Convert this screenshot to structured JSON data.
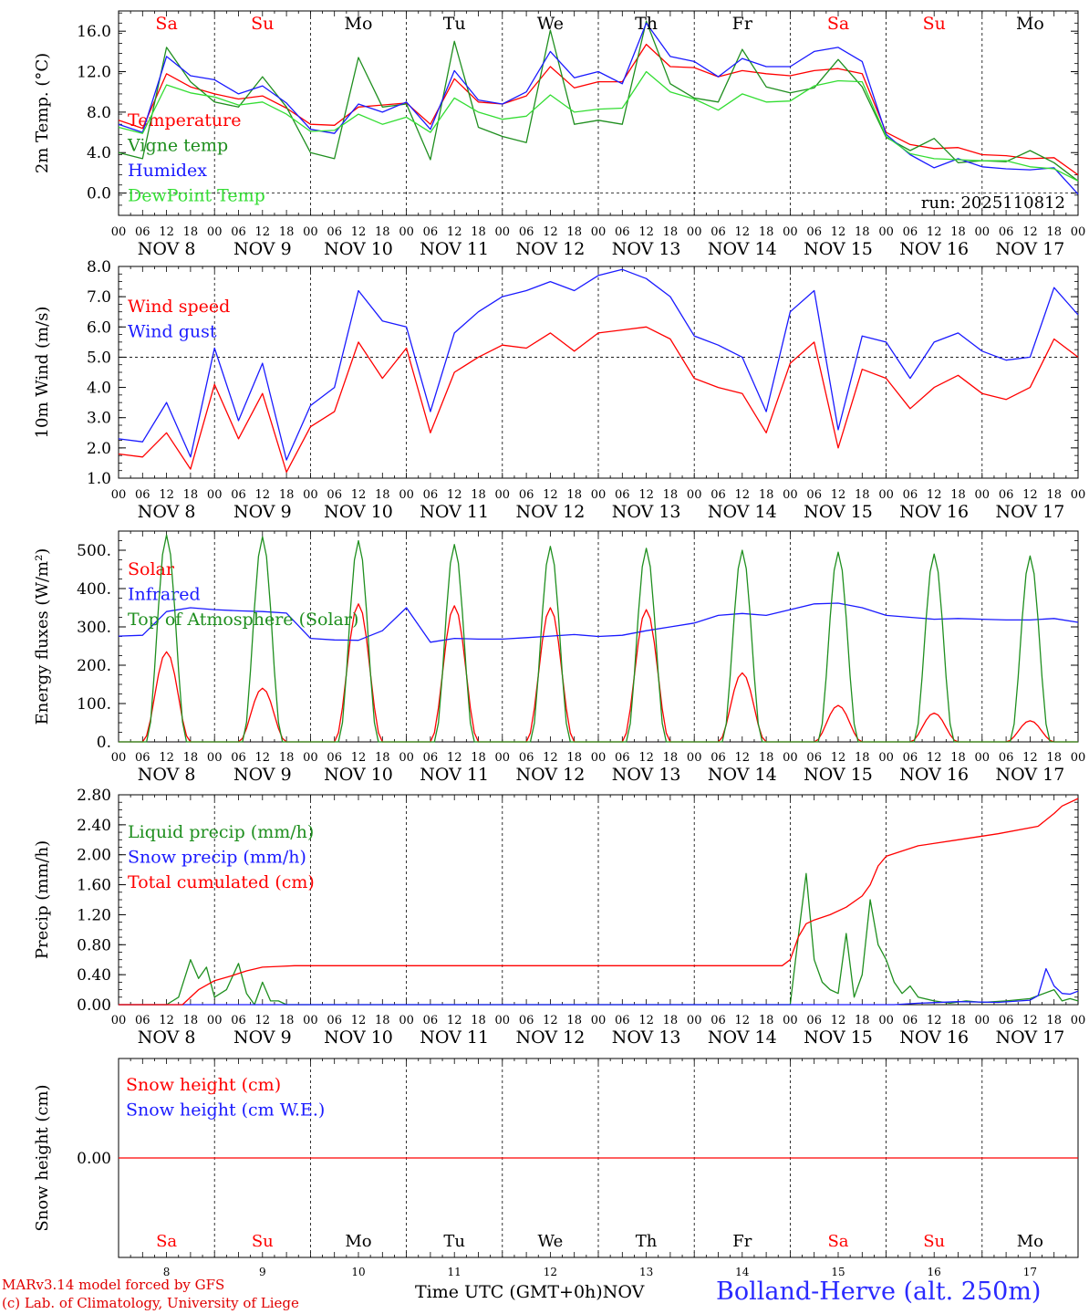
{
  "footer": {
    "credit_line1": "MARv3.14 model forced by GFS",
    "credit_line2": "(c) Lab. of Climatology, University of Liege",
    "axis_caption": "Time UTC (GMT+0h)",
    "month": "NOV",
    "station": "Bolland-Herve (alt. 250m)"
  },
  "colors": {
    "red": "#ff0000",
    "green": "#1f8f1f",
    "lightgreen": "#33dd33",
    "blue": "#1a1aff",
    "black": "#000000"
  },
  "time_axis": {
    "hours_per_day": [
      0,
      6,
      12,
      18
    ],
    "day_labels": [
      "NOV  8",
      "NOV  9",
      "NOV 10",
      "NOV 11",
      "NOV 12",
      "NOV 13",
      "NOV 14",
      "NOV 15",
      "NOV 16",
      "NOV 17"
    ],
    "weekdays": [
      "Sa",
      "Su",
      "Mo",
      "Tu",
      "We",
      "Th",
      "Fr",
      "Sa",
      "Su",
      "Mo"
    ],
    "weekday_colors": [
      "red",
      "red",
      "black",
      "black",
      "black",
      "black",
      "black",
      "red",
      "red",
      "black"
    ],
    "day_numbers": [
      "8",
      "9",
      "10",
      "11",
      "12",
      "13",
      "14",
      "15",
      "16",
      "17"
    ]
  },
  "chart_data": [
    {
      "type": "line",
      "ylabel": "2m Temp. (°C)",
      "ylim": [
        -2.2,
        18.0
      ],
      "yticks": [
        0.0,
        4.0,
        8.0,
        12.0,
        16.0
      ],
      "ytick_labels": [
        "0.0",
        "4.0",
        "8.0",
        "12.0",
        "16.0"
      ],
      "ref_line": 0.0,
      "annotation": "run: 2025110812",
      "series": [
        {
          "name": "Temperature",
          "color": "red",
          "x": [
            0,
            6,
            12,
            18,
            24,
            30,
            36,
            42,
            48,
            54,
            60,
            66,
            72,
            78,
            84,
            90,
            96,
            102,
            108,
            114,
            120,
            126,
            132,
            138,
            144,
            150,
            156,
            162,
            168,
            174,
            180,
            186,
            192,
            198,
            204,
            210,
            216,
            222,
            228,
            234,
            240
          ],
          "values": [
            7.2,
            6.4,
            11.8,
            10.5,
            9.8,
            9.3,
            9.6,
            8.4,
            6.8,
            6.7,
            8.5,
            8.7,
            8.9,
            6.8,
            11.3,
            9.0,
            8.8,
            9.6,
            12.5,
            10.4,
            11.0,
            11.0,
            14.7,
            12.5,
            12.4,
            11.5,
            12.1,
            11.8,
            11.6,
            12.1,
            12.3,
            11.8,
            6.0,
            4.8,
            4.4,
            4.5,
            3.8,
            3.7,
            3.4,
            3.5,
            1.8
          ]
        },
        {
          "name": "Vigne temp",
          "color": "green",
          "x": [
            0,
            6,
            12,
            18,
            24,
            30,
            36,
            42,
            48,
            54,
            60,
            66,
            72,
            78,
            84,
            90,
            96,
            102,
            108,
            114,
            120,
            126,
            132,
            138,
            144,
            150,
            156,
            162,
            168,
            174,
            180,
            186,
            192,
            198,
            204,
            210,
            216,
            222,
            228,
            234,
            240
          ],
          "values": [
            4.0,
            3.4,
            14.4,
            11.0,
            9.0,
            8.5,
            11.5,
            8.5,
            4.0,
            3.4,
            13.4,
            8.5,
            8.8,
            3.3,
            15.0,
            6.5,
            5.6,
            5.0,
            16.1,
            6.8,
            7.2,
            6.8,
            17.0,
            10.8,
            9.4,
            9.0,
            14.2,
            10.5,
            9.9,
            10.4,
            13.2,
            10.5,
            5.5,
            4.2,
            5.4,
            3.0,
            3.2,
            3.1,
            4.2,
            3.0,
            1.2
          ]
        },
        {
          "name": "Humidex",
          "color": "blue",
          "x": [
            0,
            6,
            12,
            18,
            24,
            30,
            36,
            42,
            48,
            54,
            60,
            66,
            72,
            78,
            84,
            90,
            96,
            102,
            108,
            114,
            120,
            126,
            132,
            138,
            144,
            150,
            156,
            162,
            168,
            174,
            180,
            186,
            192,
            198,
            204,
            210,
            216,
            222,
            228,
            234,
            240
          ],
          "values": [
            6.8,
            6.0,
            13.5,
            11.6,
            11.2,
            9.8,
            10.6,
            8.9,
            6.3,
            5.9,
            8.8,
            8.0,
            9.0,
            6.3,
            12.1,
            9.2,
            8.8,
            10.0,
            14.0,
            11.4,
            12.0,
            10.8,
            16.8,
            13.5,
            13.0,
            11.5,
            13.3,
            12.5,
            12.5,
            14.0,
            14.4,
            13.0,
            5.8,
            3.8,
            2.5,
            3.4,
            2.6,
            2.4,
            2.3,
            2.5,
            -0.1
          ]
        },
        {
          "name": "DewPoint Temp",
          "color": "lightgreen",
          "x": [
            0,
            6,
            12,
            18,
            24,
            30,
            36,
            42,
            48,
            54,
            60,
            66,
            72,
            78,
            84,
            90,
            96,
            102,
            108,
            114,
            120,
            126,
            132,
            138,
            144,
            150,
            156,
            162,
            168,
            174,
            180,
            186,
            192,
            198,
            204,
            210,
            216,
            222,
            228,
            234,
            240
          ],
          "values": [
            6.5,
            5.9,
            10.7,
            9.9,
            9.5,
            8.7,
            9.0,
            7.8,
            6.1,
            6.2,
            7.8,
            6.8,
            7.5,
            6.0,
            9.4,
            8.0,
            7.3,
            7.6,
            9.7,
            8.0,
            8.3,
            8.4,
            12.0,
            10.0,
            9.3,
            8.2,
            9.8,
            9.0,
            9.1,
            10.6,
            11.1,
            11.0,
            5.6,
            3.9,
            3.4,
            3.3,
            3.2,
            3.2,
            2.6,
            2.4,
            1.2
          ]
        }
      ]
    },
    {
      "type": "line",
      "ylabel": "10m Wind (m/s)",
      "ylim": [
        1.0,
        8.0
      ],
      "yticks": [
        1.0,
        2.0,
        3.0,
        4.0,
        5.0,
        6.0,
        7.0,
        8.0
      ],
      "ytick_labels": [
        "1.0",
        "2.0",
        "3.0",
        "4.0",
        "5.0",
        "6.0",
        "7.0",
        "8.0"
      ],
      "ref_line": 5.0,
      "series": [
        {
          "name": "Wind speed",
          "color": "red",
          "x": [
            0,
            6,
            12,
            18,
            24,
            30,
            36,
            42,
            48,
            54,
            60,
            66,
            72,
            78,
            84,
            90,
            96,
            102,
            108,
            114,
            120,
            126,
            132,
            138,
            144,
            150,
            156,
            162,
            168,
            174,
            180,
            186,
            192,
            198,
            204,
            210,
            216,
            222,
            228,
            234,
            240
          ],
          "values": [
            1.8,
            1.7,
            2.5,
            1.3,
            4.1,
            2.3,
            3.8,
            1.2,
            2.7,
            3.2,
            5.5,
            4.3,
            5.3,
            2.5,
            4.5,
            5.0,
            5.4,
            5.3,
            5.8,
            5.2,
            5.8,
            5.9,
            6.0,
            5.6,
            4.3,
            4.0,
            3.8,
            2.5,
            4.8,
            5.5,
            2.0,
            4.6,
            4.3,
            3.3,
            4.0,
            4.4,
            3.8,
            3.6,
            4.0,
            5.6,
            5.0
          ]
        },
        {
          "name": "Wind gust",
          "color": "blue",
          "x": [
            0,
            6,
            12,
            18,
            24,
            30,
            36,
            42,
            48,
            54,
            60,
            66,
            72,
            78,
            84,
            90,
            96,
            102,
            108,
            114,
            120,
            126,
            132,
            138,
            144,
            150,
            156,
            162,
            168,
            174,
            180,
            186,
            192,
            198,
            204,
            210,
            216,
            222,
            228,
            234,
            240
          ],
          "values": [
            2.3,
            2.2,
            3.5,
            1.7,
            5.3,
            2.9,
            4.8,
            1.6,
            3.4,
            4.0,
            7.2,
            6.2,
            6.0,
            3.2,
            5.8,
            6.5,
            7.0,
            7.2,
            7.5,
            7.2,
            7.7,
            7.9,
            7.6,
            7.0,
            5.7,
            5.4,
            5.0,
            3.2,
            6.5,
            7.2,
            2.6,
            5.7,
            5.5,
            4.3,
            5.5,
            5.8,
            5.2,
            4.9,
            5.0,
            7.3,
            6.4
          ]
        }
      ]
    },
    {
      "type": "line",
      "ylabel": "Energy fluxes (W/m²)",
      "ylim": [
        0,
        550
      ],
      "yticks": [
        0,
        100,
        200,
        300,
        400,
        500
      ],
      "ytick_labels": [
        "0.",
        "100.",
        "200.",
        "300.",
        "400.",
        "500."
      ],
      "series": [
        {
          "name": "Solar",
          "color": "red",
          "peaks": [
            235,
            140,
            360,
            355,
            350,
            345,
            180,
            95,
            75,
            55
          ],
          "peak_hour": 12,
          "half_width_hours": 6
        },
        {
          "name": "Infrared",
          "color": "blue",
          "x": [
            0,
            6,
            12,
            18,
            24,
            30,
            36,
            42,
            48,
            54,
            60,
            66,
            72,
            78,
            84,
            90,
            96,
            102,
            108,
            114,
            120,
            126,
            132,
            138,
            144,
            150,
            156,
            162,
            168,
            174,
            180,
            186,
            192,
            198,
            204,
            210,
            216,
            222,
            228,
            234,
            240
          ],
          "values": [
            276,
            278,
            340,
            350,
            345,
            342,
            340,
            336,
            270,
            266,
            265,
            290,
            350,
            260,
            270,
            268,
            268,
            272,
            276,
            280,
            275,
            278,
            290,
            300,
            310,
            330,
            335,
            330,
            345,
            360,
            362,
            350,
            330,
            325,
            320,
            322,
            320,
            318,
            318,
            322,
            312
          ]
        },
        {
          "name": "Top of Atmosphere (Solar)",
          "color": "green",
          "peaks": [
            540,
            535,
            525,
            515,
            510,
            505,
            500,
            495,
            490,
            485
          ],
          "peak_hour": 12,
          "half_width_hours": 5
        }
      ]
    },
    {
      "type": "line",
      "ylabel": "Precip (mm/h)",
      "ylim": [
        0,
        2.8
      ],
      "yticks": [
        0,
        0.4,
        0.8,
        1.2,
        1.6,
        2.0,
        2.4,
        2.8
      ],
      "ytick_labels": [
        "0.00",
        "0.40",
        "0.80",
        "1.20",
        "1.60",
        "2.00",
        "2.40",
        "2.80"
      ],
      "series": [
        {
          "name": "Liquid precip (mm/h)",
          "color": "green",
          "x": [
            0,
            12,
            15,
            18,
            20,
            22,
            24,
            27,
            30,
            32,
            34,
            36,
            38,
            40,
            42,
            44,
            48,
            168,
            170,
            172,
            174,
            176,
            178,
            180,
            182,
            184,
            186,
            188,
            190,
            192,
            194,
            196,
            198,
            200,
            204,
            208,
            212,
            216,
            222,
            228,
            234,
            236,
            238,
            240
          ],
          "values": [
            0,
            0,
            0.1,
            0.6,
            0.35,
            0.5,
            0.1,
            0.2,
            0.55,
            0.15,
            0.0,
            0.3,
            0.05,
            0.05,
            0.0,
            0.0,
            0.0,
            0.0,
            0.9,
            1.75,
            0.6,
            0.3,
            0.2,
            0.15,
            0.95,
            0.1,
            0.4,
            1.4,
            0.8,
            0.6,
            0.3,
            0.15,
            0.25,
            0.1,
            0.05,
            0.02,
            0.05,
            0.03,
            0.05,
            0.08,
            0.2,
            0.05,
            0.08,
            0.05
          ]
        },
        {
          "name": "Snow precip (mm/h)",
          "color": "blue",
          "x": [
            0,
            194,
            200,
            210,
            220,
            228,
            230,
            232,
            234,
            236,
            238,
            240
          ],
          "values": [
            0,
            0,
            0.02,
            0.04,
            0.03,
            0.06,
            0.12,
            0.48,
            0.25,
            0.15,
            0.14,
            0.18
          ]
        },
        {
          "name": "Total cumulated (cm)",
          "color": "red",
          "x": [
            0,
            16,
            20,
            24,
            28,
            32,
            36,
            40,
            44,
            60,
            100,
            140,
            166,
            168,
            170,
            172,
            174,
            178,
            182,
            186,
            188,
            190,
            192,
            196,
            200,
            210,
            220,
            230,
            234,
            236,
            240
          ],
          "values": [
            0,
            0,
            0.2,
            0.32,
            0.38,
            0.45,
            0.5,
            0.51,
            0.52,
            0.52,
            0.52,
            0.52,
            0.52,
            0.6,
            0.9,
            1.08,
            1.13,
            1.2,
            1.3,
            1.45,
            1.6,
            1.85,
            1.98,
            2.05,
            2.12,
            2.2,
            2.28,
            2.38,
            2.55,
            2.65,
            2.75
          ]
        }
      ]
    },
    {
      "type": "line",
      "ylabel": "Snow height (cm)",
      "ylim": [
        -1,
        1
      ],
      "yticks": [
        0
      ],
      "ytick_labels": [
        "0.00"
      ],
      "series": [
        {
          "name": "Snow height (cm)",
          "color": "red",
          "x": [
            0,
            240
          ],
          "values": [
            0,
            0
          ]
        },
        {
          "name": "Snow height (cm W.E.)",
          "color": "blue",
          "x": [],
          "values": []
        }
      ]
    }
  ]
}
